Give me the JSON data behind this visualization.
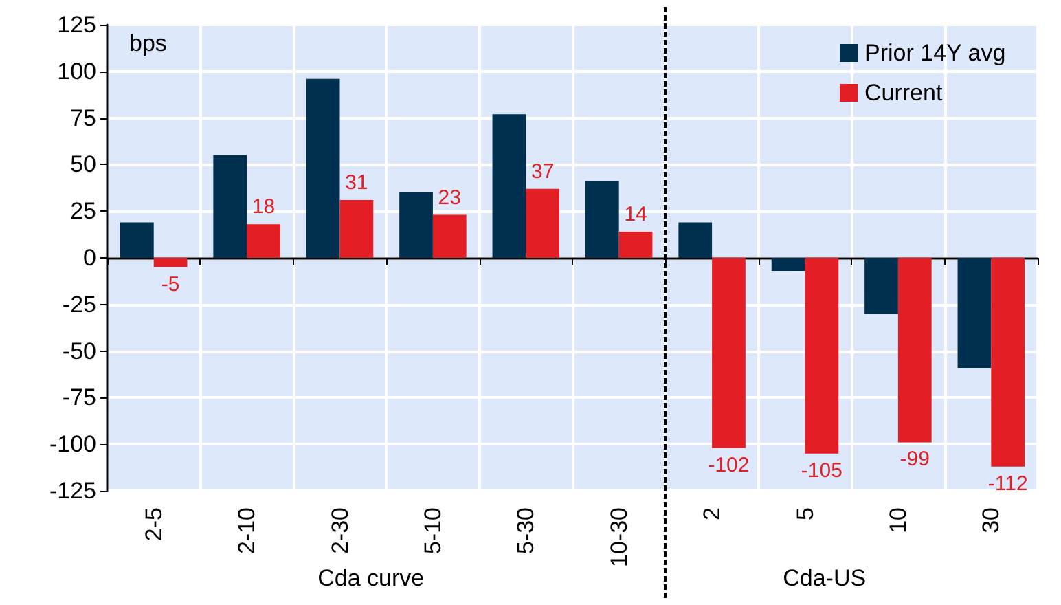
{
  "chart_data": {
    "type": "bar",
    "ylabel": "bps",
    "categories": [
      "2-5",
      "2-10",
      "2-30",
      "5-10",
      "5-30",
      "10-30",
      "2",
      "5",
      "10",
      "30"
    ],
    "series": [
      {
        "name": "Prior 14Y avg",
        "color": "#00304f",
        "values": [
          19,
          55,
          96,
          35,
          77,
          41,
          19,
          -7,
          -30,
          -59
        ]
      },
      {
        "name": "Current",
        "color": "#e31e24",
        "values": [
          -5,
          18,
          31,
          23,
          37,
          14,
          -102,
          -105,
          -99,
          -112
        ],
        "value_labels": [
          "-5",
          "18",
          "31",
          "23",
          "37",
          "14",
          "-102",
          "-105",
          "-99",
          "-112"
        ]
      }
    ],
    "ylim": [
      -125,
      125
    ],
    "yticks": [
      -125,
      -100,
      -75,
      -50,
      -25,
      0,
      25,
      50,
      75,
      100,
      125
    ],
    "grid": true,
    "legend": "top right",
    "annotations": [
      "Cda curve",
      "Cda-US"
    ]
  }
}
